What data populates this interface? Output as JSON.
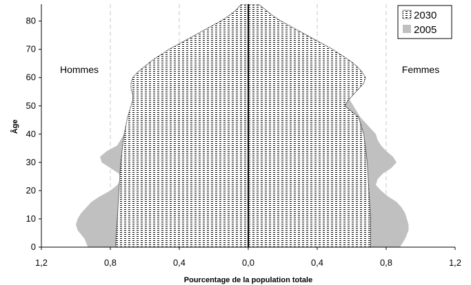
{
  "chart_data": {
    "type": "population_pyramid",
    "xlabel": "Pourcentage de la population totale",
    "ylabel": "Âge",
    "xlim": [
      -1.2,
      1.2
    ],
    "ylim": [
      0,
      86
    ],
    "x_ticks": [
      -1.2,
      -0.8,
      -0.4,
      0.0,
      0.4,
      0.8,
      1.2
    ],
    "x_tick_labels": [
      "1,2",
      "0,8",
      "0,4",
      "0,0",
      "0,4",
      "0,8",
      "1,2"
    ],
    "y_ticks": [
      0,
      10,
      20,
      30,
      40,
      50,
      60,
      70,
      80
    ],
    "y_tick_labels": [
      "0",
      "10",
      "20",
      "30",
      "40",
      "50",
      "60",
      "70",
      "80"
    ],
    "left_group_label": "Hommes",
    "right_group_label": "Femmes",
    "legend_position": "top-right",
    "grid": "vertical dashed",
    "series": [
      {
        "name": "2005",
        "style": "solid",
        "color": "#c0c0c0",
        "ages": [
          0,
          3,
          6,
          8,
          10,
          12,
          14,
          16,
          18,
          20,
          22,
          24,
          26,
          28,
          30,
          32,
          34,
          36,
          38,
          40,
          42,
          44,
          46,
          48,
          50,
          52,
          54,
          56,
          58,
          60,
          62,
          64,
          66,
          68,
          70,
          72,
          74,
          76,
          78,
          80,
          82,
          84,
          86
        ],
        "hommes": [
          0.93,
          0.95,
          0.99,
          1.0,
          0.99,
          0.97,
          0.94,
          0.91,
          0.86,
          0.8,
          0.76,
          0.74,
          0.75,
          0.8,
          0.85,
          0.86,
          0.82,
          0.76,
          0.74,
          0.72,
          0.69,
          0.66,
          0.63,
          0.61,
          0.58,
          0.55,
          0.52,
          0.49,
          0.44,
          0.4,
          0.36,
          0.32,
          0.28,
          0.25,
          0.21,
          0.18,
          0.15,
          0.12,
          0.09,
          0.06,
          0.04,
          0.02,
          0.01
        ],
        "femmes": [
          0.88,
          0.91,
          0.93,
          0.93,
          0.92,
          0.91,
          0.89,
          0.86,
          0.81,
          0.77,
          0.74,
          0.75,
          0.78,
          0.83,
          0.86,
          0.84,
          0.8,
          0.77,
          0.75,
          0.74,
          0.71,
          0.68,
          0.65,
          0.63,
          0.61,
          0.59,
          0.55,
          0.52,
          0.48,
          0.45,
          0.41,
          0.38,
          0.34,
          0.31,
          0.27,
          0.24,
          0.21,
          0.17,
          0.14,
          0.11,
          0.08,
          0.05,
          0.03
        ]
      },
      {
        "name": "2030",
        "style": "dotted",
        "color": "#000000",
        "ages": [
          0,
          10,
          20,
          30,
          40,
          46,
          48,
          50,
          52,
          54,
          56,
          58,
          60,
          62,
          64,
          66,
          68,
          70,
          72,
          74,
          76,
          78,
          80,
          82,
          84,
          86
        ],
        "hommes": [
          0.77,
          0.76,
          0.75,
          0.74,
          0.72,
          0.7,
          0.69,
          0.68,
          0.67,
          0.67,
          0.68,
          0.68,
          0.67,
          0.64,
          0.6,
          0.56,
          0.51,
          0.46,
          0.4,
          0.34,
          0.28,
          0.22,
          0.16,
          0.11,
          0.07,
          0.04
        ],
        "femmes": [
          0.71,
          0.71,
          0.7,
          0.69,
          0.67,
          0.64,
          0.6,
          0.56,
          0.58,
          0.61,
          0.64,
          0.67,
          0.68,
          0.66,
          0.63,
          0.59,
          0.54,
          0.49,
          0.43,
          0.37,
          0.31,
          0.25,
          0.19,
          0.14,
          0.1,
          0.06
        ]
      }
    ]
  }
}
